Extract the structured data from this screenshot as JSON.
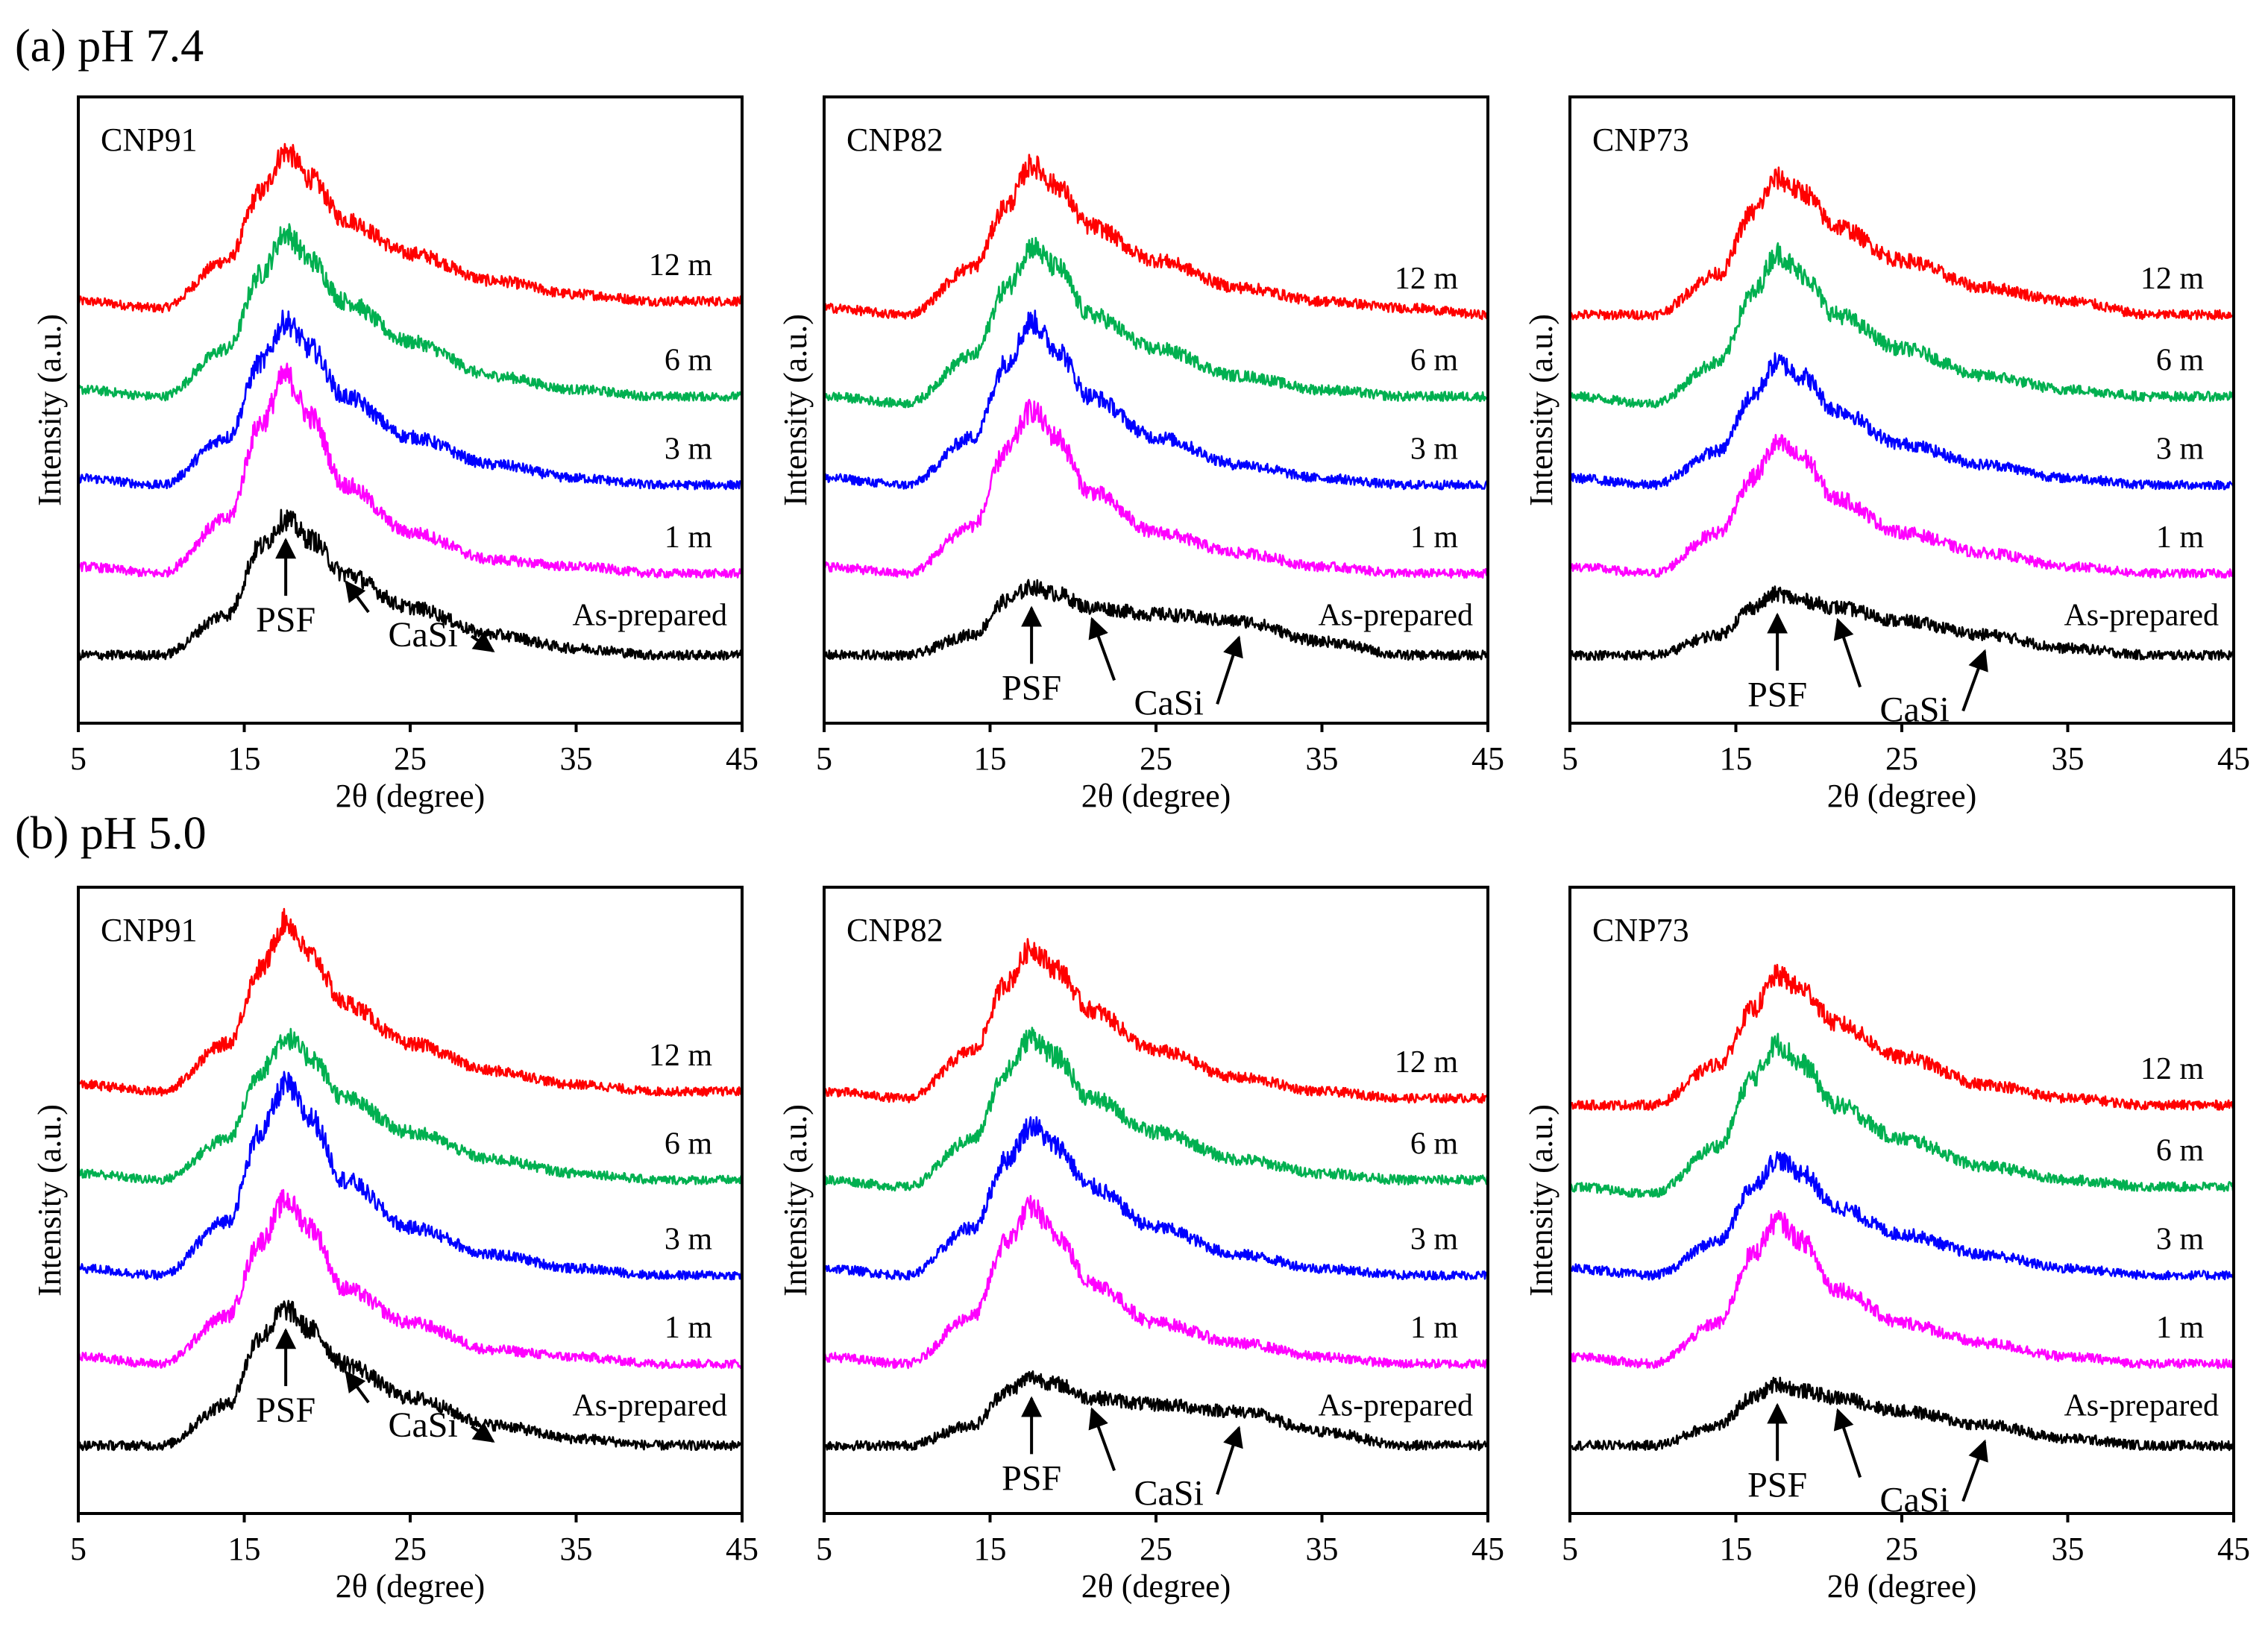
{
  "figure": {
    "sections": [
      {
        "id": "a",
        "title": "(a) pH 7.4"
      },
      {
        "id": "b",
        "title": "(b) pH 5.0"
      }
    ],
    "panel_names": [
      "CNP91",
      "CNP82",
      "CNP73"
    ],
    "x_axis": {
      "label": "2θ (degree)",
      "range": [
        5,
        45
      ],
      "ticks": [
        "5",
        "15",
        "25",
        "35",
        "45"
      ]
    },
    "y_axis": {
      "label": "Intensity (a.u.)"
    },
    "series_labels": [
      "12 m",
      "6 m",
      "3 m",
      "1 m",
      "As-prepared"
    ],
    "series_colors": [
      "#ff0000",
      "#00b050",
      "#0000ff",
      "#ff00ff",
      "#000000"
    ],
    "annotations": [
      "PSF",
      "CaSi"
    ]
  },
  "chart_data": [
    {
      "type": "line",
      "section": "(a) pH 7.4",
      "panel": "CNP91",
      "x": [
        5,
        10,
        14,
        16,
        17.5,
        19,
        21,
        25,
        30,
        35,
        40,
        45
      ],
      "xlabel": "2θ (degree)",
      "ylabel": "Intensity (a.u.)",
      "xlim": [
        5,
        45
      ],
      "series": [
        {
          "name": "12 m",
          "color": "#ff0000",
          "values": [
            6.2,
            6.1,
            6.8,
            7.8,
            8.4,
            8.0,
            7.4,
            6.9,
            6.5,
            6.3,
            6.2,
            6.2
          ]
        },
        {
          "name": "6 m",
          "color": "#00b050",
          "values": [
            4.9,
            4.8,
            5.5,
            6.6,
            7.2,
            6.8,
            6.2,
            5.6,
            5.1,
            4.9,
            4.8,
            4.8
          ]
        },
        {
          "name": "3 m",
          "color": "#0000ff",
          "values": [
            3.6,
            3.5,
            4.2,
            5.3,
            5.9,
            5.5,
            4.8,
            4.2,
            3.8,
            3.6,
            3.5,
            3.5
          ]
        },
        {
          "name": "1 m",
          "color": "#ff00ff",
          "values": [
            2.3,
            2.2,
            3.0,
            4.4,
            5.1,
            4.5,
            3.5,
            2.8,
            2.4,
            2.3,
            2.2,
            2.2
          ]
        },
        {
          "name": "As-prepared",
          "color": "#000000",
          "values": [
            1.0,
            1.0,
            1.6,
            2.6,
            3.0,
            2.7,
            2.2,
            1.7,
            1.3,
            1.1,
            1.0,
            1.0
          ]
        }
      ]
    },
    {
      "type": "line",
      "section": "(a) pH 7.4",
      "panel": "CNP82",
      "x": [
        5,
        10,
        14,
        16,
        17.5,
        19,
        21,
        25,
        30,
        35,
        40,
        45
      ],
      "xlabel": "2θ (degree)",
      "ylabel": "Intensity (a.u.)",
      "xlim": [
        5,
        45
      ],
      "series": [
        {
          "name": "12 m",
          "color": "#ff0000",
          "values": [
            6.1,
            6.0,
            6.7,
            7.6,
            8.2,
            7.9,
            7.3,
            6.8,
            6.4,
            6.2,
            6.1,
            6.0
          ]
        },
        {
          "name": "6 m",
          "color": "#00b050",
          "values": [
            4.8,
            4.7,
            5.4,
            6.4,
            7.0,
            6.7,
            6.0,
            5.5,
            5.1,
            4.9,
            4.8,
            4.8
          ]
        },
        {
          "name": "3 m",
          "color": "#0000ff",
          "values": [
            3.6,
            3.5,
            4.2,
            5.3,
            5.9,
            5.5,
            4.8,
            4.2,
            3.8,
            3.6,
            3.5,
            3.5
          ]
        },
        {
          "name": "1 m",
          "color": "#ff00ff",
          "values": [
            2.3,
            2.2,
            2.9,
            4.0,
            4.6,
            4.2,
            3.4,
            2.8,
            2.5,
            2.3,
            2.2,
            2.2
          ]
        },
        {
          "name": "As-prepared",
          "color": "#000000",
          "values": [
            1.0,
            1.0,
            1.3,
            1.8,
            2.0,
            1.9,
            1.7,
            1.6,
            1.5,
            1.2,
            1.0,
            1.0
          ]
        }
      ]
    },
    {
      "type": "line",
      "section": "(a) pH 7.4",
      "panel": "CNP73",
      "x": [
        5,
        10,
        14,
        16,
        17.5,
        19,
        21,
        25,
        30,
        35,
        40,
        45
      ],
      "xlabel": "2θ (degree)",
      "ylabel": "Intensity (a.u.)",
      "xlim": [
        5,
        45
      ],
      "series": [
        {
          "name": "12 m",
          "color": "#ff0000",
          "values": [
            6.0,
            6.0,
            6.6,
            7.5,
            8.0,
            7.8,
            7.3,
            6.8,
            6.4,
            6.2,
            6.0,
            6.0
          ]
        },
        {
          "name": "6 m",
          "color": "#00b050",
          "values": [
            4.8,
            4.7,
            5.3,
            6.3,
            6.9,
            6.6,
            6.0,
            5.5,
            5.1,
            4.9,
            4.8,
            4.8
          ]
        },
        {
          "name": "3 m",
          "color": "#0000ff",
          "values": [
            3.6,
            3.5,
            4.0,
            4.8,
            5.3,
            5.1,
            4.6,
            4.1,
            3.8,
            3.6,
            3.5,
            3.5
          ]
        },
        {
          "name": "1 m",
          "color": "#ff00ff",
          "values": [
            2.3,
            2.2,
            2.8,
            3.6,
            4.1,
            3.9,
            3.3,
            2.8,
            2.5,
            2.3,
            2.2,
            2.2
          ]
        },
        {
          "name": "As-prepared",
          "color": "#000000",
          "values": [
            1.0,
            1.0,
            1.3,
            1.7,
            1.9,
            1.8,
            1.7,
            1.5,
            1.3,
            1.1,
            1.0,
            1.0
          ]
        }
      ]
    },
    {
      "type": "line",
      "section": "(b) pH 5.0",
      "panel": "CNP91",
      "x": [
        5,
        10,
        14,
        16,
        17.5,
        19,
        21,
        25,
        30,
        35,
        40,
        45
      ],
      "xlabel": "2θ (degree)",
      "ylabel": "Intensity (a.u.)",
      "xlim": [
        5,
        45
      ],
      "series": [
        {
          "name": "12 m",
          "color": "#ff0000",
          "values": [
            6.3,
            6.2,
            6.9,
            8.0,
            8.7,
            8.2,
            7.5,
            6.9,
            6.5,
            6.3,
            6.2,
            6.2
          ]
        },
        {
          "name": "6 m",
          "color": "#00b050",
          "values": [
            5.0,
            4.9,
            5.5,
            6.5,
            7.0,
            6.7,
            6.1,
            5.6,
            5.2,
            5.0,
            4.9,
            4.9
          ]
        },
        {
          "name": "3 m",
          "color": "#0000ff",
          "values": [
            3.6,
            3.5,
            4.3,
            5.6,
            6.3,
            5.8,
            4.9,
            4.2,
            3.8,
            3.6,
            3.5,
            3.5
          ]
        },
        {
          "name": "1 m",
          "color": "#ff00ff",
          "values": [
            2.3,
            2.2,
            2.9,
            4.0,
            4.6,
            4.2,
            3.3,
            2.8,
            2.4,
            2.3,
            2.2,
            2.2
          ]
        },
        {
          "name": "As-prepared",
          "color": "#000000",
          "values": [
            1.0,
            1.0,
            1.6,
            2.6,
            3.0,
            2.7,
            2.2,
            1.7,
            1.3,
            1.1,
            1.0,
            1.0
          ]
        }
      ]
    },
    {
      "type": "line",
      "section": "(b) pH 5.0",
      "panel": "CNP82",
      "x": [
        5,
        10,
        14,
        16,
        17.5,
        19,
        21,
        25,
        30,
        35,
        40,
        45
      ],
      "xlabel": "2θ (degree)",
      "ylabel": "Intensity (a.u.)",
      "xlim": [
        5,
        45
      ],
      "series": [
        {
          "name": "12 m",
          "color": "#ff0000",
          "values": [
            6.2,
            6.1,
            6.8,
            7.8,
            8.3,
            8.0,
            7.4,
            6.8,
            6.4,
            6.2,
            6.1,
            6.1
          ]
        },
        {
          "name": "6 m",
          "color": "#00b050",
          "values": [
            4.9,
            4.8,
            5.5,
            6.5,
            7.0,
            6.7,
            6.1,
            5.6,
            5.2,
            5.0,
            4.9,
            4.9
          ]
        },
        {
          "name": "3 m",
          "color": "#0000ff",
          "values": [
            3.6,
            3.5,
            4.2,
            5.2,
            5.7,
            5.4,
            4.8,
            4.2,
            3.8,
            3.6,
            3.5,
            3.5
          ]
        },
        {
          "name": "1 m",
          "color": "#ff00ff",
          "values": [
            2.3,
            2.2,
            2.9,
            4.0,
            4.5,
            4.1,
            3.4,
            2.8,
            2.5,
            2.3,
            2.2,
            2.2
          ]
        },
        {
          "name": "As-prepared",
          "color": "#000000",
          "values": [
            1.0,
            1.0,
            1.3,
            1.8,
            2.0,
            1.9,
            1.7,
            1.6,
            1.5,
            1.2,
            1.0,
            1.0
          ]
        }
      ]
    },
    {
      "type": "line",
      "section": "(b) pH 5.0",
      "panel": "CNP73",
      "x": [
        5,
        10,
        14,
        16,
        17.5,
        19,
        21,
        25,
        30,
        35,
        40,
        45
      ],
      "xlabel": "2θ (degree)",
      "ylabel": "Intensity (a.u.)",
      "xlim": [
        5,
        45
      ],
      "series": [
        {
          "name": "12 m",
          "color": "#ff0000",
          "values": [
            6.0,
            6.0,
            6.6,
            7.4,
            7.9,
            7.7,
            7.2,
            6.7,
            6.3,
            6.1,
            6.0,
            6.0
          ]
        },
        {
          "name": "6 m",
          "color": "#00b050",
          "values": [
            4.8,
            4.7,
            5.4,
            6.4,
            6.9,
            6.6,
            6.0,
            5.5,
            5.1,
            4.9,
            4.8,
            4.8
          ]
        },
        {
          "name": "3 m",
          "color": "#0000ff",
          "values": [
            3.6,
            3.5,
            4.0,
            4.8,
            5.2,
            5.0,
            4.5,
            4.1,
            3.8,
            3.6,
            3.5,
            3.5
          ]
        },
        {
          "name": "1 m",
          "color": "#ff00ff",
          "values": [
            2.3,
            2.2,
            2.8,
            3.8,
            4.3,
            4.0,
            3.3,
            2.8,
            2.5,
            2.3,
            2.2,
            2.2
          ]
        },
        {
          "name": "As-prepared",
          "color": "#000000",
          "values": [
            1.0,
            1.0,
            1.3,
            1.7,
            1.9,
            1.8,
            1.7,
            1.5,
            1.3,
            1.1,
            1.0,
            1.0
          ]
        }
      ]
    }
  ]
}
